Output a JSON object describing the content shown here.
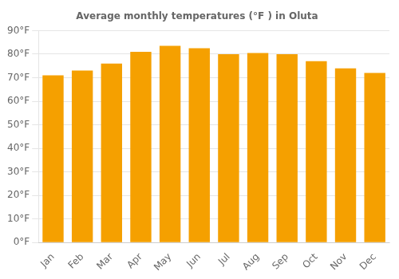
{
  "chart_data": {
    "type": "bar",
    "title": "Average monthly temperatures (°F ) in Oluta",
    "categories": [
      "Jan",
      "Feb",
      "Mar",
      "Apr",
      "May",
      "Jun",
      "Jul",
      "Aug",
      "Sep",
      "Oct",
      "Nov",
      "Dec"
    ],
    "values": [
      71,
      73,
      76,
      81,
      83.5,
      82.5,
      80,
      80.5,
      80,
      77,
      74,
      72
    ],
    "color": "#F5A000",
    "ylim": [
      0,
      90
    ],
    "yticks": [
      {
        "value": 0,
        "label": "0°F"
      },
      {
        "value": 10,
        "label": "10°F"
      },
      {
        "value": 20,
        "label": "20°F"
      },
      {
        "value": 30,
        "label": "30°F"
      },
      {
        "value": 40,
        "label": "40°F"
      },
      {
        "value": 50,
        "label": "50°F"
      },
      {
        "value": 60,
        "label": "60°F"
      },
      {
        "value": 70,
        "label": "70°F"
      },
      {
        "value": 80,
        "label": "80°F"
      },
      {
        "value": 90,
        "label": "90°F"
      }
    ],
    "grid": true
  }
}
